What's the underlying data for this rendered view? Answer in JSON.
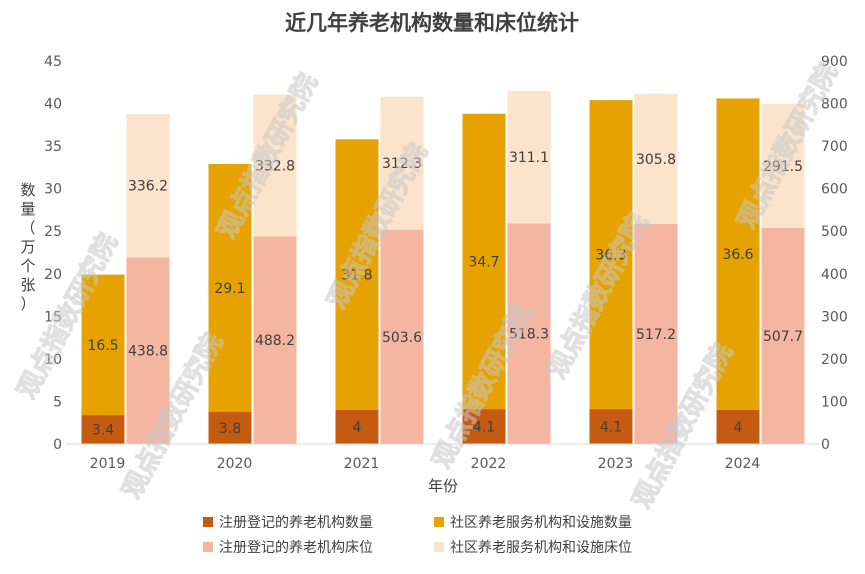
{
  "chart_data": {
    "type": "bar",
    "title": "近几年养老机构数量和床位统计",
    "xlabel": "年份",
    "ylabel": "数量（万个张）",
    "categories": [
      "2019",
      "2020",
      "2021",
      "2022",
      "2023",
      "2024"
    ],
    "left_axis": {
      "min": 0,
      "max": 45,
      "step": 5
    },
    "right_axis": {
      "min": 0,
      "max": 900,
      "step": 100
    },
    "stacks": [
      {
        "axis": "left",
        "series": [
          {
            "name": "注册登记的养老机构数量",
            "color": "#C55A11",
            "values": [
              3.4,
              3.8,
              4,
              4.1,
              4.1,
              4
            ],
            "labels": [
              "3.4",
              "3.8",
              "4",
              "4.1",
              "4.1",
              "4"
            ]
          },
          {
            "name": "社区养老服务机构和设施数量",
            "color": "#E6A200",
            "values": [
              16.5,
              29.1,
              31.8,
              34.7,
              36.3,
              36.6
            ],
            "labels": [
              "16.5",
              "29.1",
              "31.8",
              "34.7",
              "36.3",
              "36.6"
            ]
          }
        ]
      },
      {
        "axis": "right",
        "series": [
          {
            "name": "注册登记的养老机构床位",
            "color": "#F4B6A0",
            "values": [
              438.8,
              488.2,
              503.6,
              518.3,
              517.2,
              507.7
            ],
            "labels": [
              "438.8",
              "488.2",
              "503.6",
              "518.3",
              "517.2",
              "507.7"
            ]
          },
          {
            "name": "社区养老服务机构和设施床位",
            "color": "#FBE3CC",
            "values": [
              336.2,
              332.8,
              312.3,
              311.1,
              305.8,
              291.5
            ],
            "labels": [
              "336.2",
              "332.8",
              "312.3",
              "311.1",
              "305.8",
              "291.5"
            ]
          }
        ]
      }
    ],
    "legend": {
      "position": "bottom",
      "items": [
        "注册登记的养老机构数量",
        "社区养老服务机构和设施数量",
        "注册登记的养老机构床位",
        "社区养老服务机构和设施床位"
      ]
    },
    "watermark": "观点指数研究院",
    "grid": false
  }
}
